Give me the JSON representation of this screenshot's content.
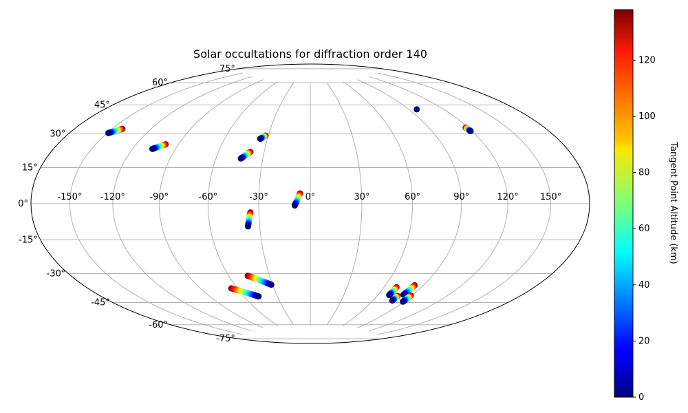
{
  "chart_data": {
    "type": "scatter",
    "projection": "hammer",
    "title": "Solar occultations for diffraction order 140",
    "grid": true,
    "x_tick_labels": [
      "-150°",
      "-120°",
      "-90°",
      "-60°",
      "-30°",
      "0°",
      "30°",
      "60°",
      "90°",
      "120°",
      "150°"
    ],
    "y_tick_labels": [
      "75°",
      "60°",
      "45°",
      "30°",
      "15°",
      "0°",
      "-15°",
      "-30°",
      "-45°",
      "-60°",
      "-75°"
    ],
    "colorbar": {
      "label": "Tangent Point Altitude (km)",
      "colormap": "jet",
      "range": [
        0,
        138
      ],
      "tick_labels": [
        "0",
        "20",
        "40",
        "60",
        "80",
        "100",
        "120"
      ]
    },
    "series": [
      {
        "points": [
          {
            "lon": -142,
            "lat": 37,
            "alt": 138
          },
          {
            "lon": -149,
            "lat": 34,
            "alt": 0
          }
        ]
      },
      {
        "points": [
          {
            "lon": -99,
            "lat": 32,
            "alt": 138
          },
          {
            "lon": -106,
            "lat": 29,
            "alt": 0
          }
        ]
      },
      {
        "points": [
          {
            "lon": -32,
            "lat": 40,
            "alt": 138
          },
          {
            "lon": -35,
            "lat": 38,
            "alt": 0
          }
        ]
      },
      {
        "points": [
          {
            "lon": -39,
            "lat": 30,
            "alt": 138
          },
          {
            "lon": -44,
            "lat": 26,
            "alt": 0
          }
        ]
      },
      {
        "points": [
          {
            "lon": -6,
            "lat": 6,
            "alt": 138
          },
          {
            "lon": -9,
            "lat": -1,
            "alt": 0
          }
        ]
      },
      {
        "points": [
          {
            "lon": -35,
            "lat": -5,
            "alt": 138
          },
          {
            "lon": -37,
            "lat": -13,
            "alt": 0
          }
        ]
      },
      {
        "points": [
          {
            "lon": -46,
            "lat": -42,
            "alt": 138
          },
          {
            "lon": -31,
            "lat": -48,
            "alt": 0
          }
        ]
      },
      {
        "points": [
          {
            "lon": -65,
            "lat": -49,
            "alt": 138
          },
          {
            "lon": -47,
            "lat": -55,
            "alt": 0
          }
        ]
      },
      {
        "points": [
          {
            "lon": 97,
            "lat": 53,
            "alt": 0
          }
        ]
      },
      {
        "points": [
          {
            "lon": 118,
            "lat": 40,
            "alt": 138
          },
          {
            "lon": 119,
            "lat": 38,
            "alt": 0
          }
        ]
      },
      {
        "points": [
          {
            "lon": 70,
            "lat": -48,
            "alt": 138
          },
          {
            "lon": 70,
            "lat": -53,
            "alt": 0
          }
        ]
      },
      {
        "points": [
          {
            "lon": 78,
            "lat": -53,
            "alt": 138
          },
          {
            "lon": 78,
            "lat": -56,
            "alt": 0
          }
        ]
      },
      {
        "points": [
          {
            "lon": 83,
            "lat": -46,
            "alt": 138
          },
          {
            "lon": 82,
            "lat": -52,
            "alt": 0
          }
        ]
      },
      {
        "points": [
          {
            "lon": 89,
            "lat": -52,
            "alt": 138
          },
          {
            "lon": 89,
            "lat": -56,
            "alt": 0
          }
        ]
      }
    ]
  }
}
